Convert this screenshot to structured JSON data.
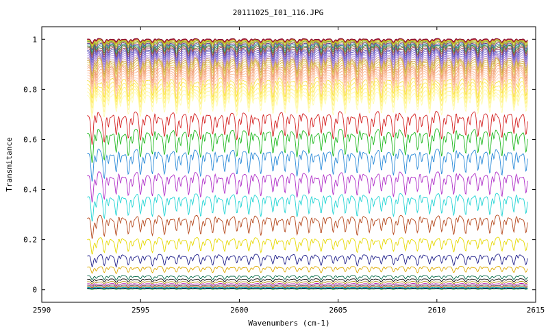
{
  "chart_data": {
    "type": "line",
    "title": "20111025_I01_116.JPG",
    "xlabel": "Wavenumbers (cm-1)",
    "ylabel": "Transmitance",
    "xlim": [
      2590,
      2615
    ],
    "ylim": [
      -0.05,
      1.05
    ],
    "x_ticks": [
      2590,
      2595,
      2600,
      2605,
      2610,
      2615
    ],
    "x_tick_labels": [
      "2590",
      "2595",
      "2600",
      "2605",
      "2610",
      "2615"
    ],
    "y_ticks": [
      0,
      0.2,
      0.4,
      0.6,
      0.8,
      1
    ],
    "y_tick_labels": [
      "0",
      "0.2",
      "0.4",
      "0.6",
      "0.8",
      "1"
    ],
    "grid": false,
    "legend": "none",
    "x_range": [
      2592.3,
      2614.6
    ],
    "line_count": 50,
    "series": [
      {
        "color": "#008800",
        "baseline": 0.003,
        "depth": 0.001
      },
      {
        "color": "#000080",
        "baseline": 0.006,
        "depth": 0.002
      },
      {
        "color": "#00aaaa",
        "baseline": 0.009,
        "depth": 0.003
      },
      {
        "color": "#aa4400",
        "baseline": 0.013,
        "depth": 0.004
      },
      {
        "color": "#666666",
        "baseline": 0.018,
        "depth": 0.005
      },
      {
        "color": "#aa00aa",
        "baseline": 0.024,
        "depth": 0.006
      },
      {
        "color": "#aa8800",
        "baseline": 0.032,
        "depth": 0.008
      },
      {
        "color": "#000000",
        "baseline": 0.042,
        "depth": 0.01
      },
      {
        "color": "#006644",
        "baseline": 0.055,
        "depth": 0.013
      },
      {
        "color": "#ddaa00",
        "baseline": 0.09,
        "depth": 0.02
      },
      {
        "color": "#1f1f8a",
        "baseline": 0.135,
        "depth": 0.035
      },
      {
        "color": "#e6d800",
        "baseline": 0.2,
        "depth": 0.045
      },
      {
        "color": "#b5481c",
        "baseline": 0.285,
        "depth": 0.06
      },
      {
        "color": "#22d4d4",
        "baseline": 0.37,
        "depth": 0.07
      },
      {
        "color": "#b030c8",
        "baseline": 0.455,
        "depth": 0.075
      },
      {
        "color": "#2a8ad8",
        "baseline": 0.545,
        "depth": 0.08
      },
      {
        "color": "#1fb81f",
        "baseline": 0.625,
        "depth": 0.085
      },
      {
        "color": "#d42020",
        "baseline": 0.695,
        "depth": 0.085
      },
      {
        "color": "#fffbb0",
        "baseline": 0.775,
        "depth": 0.07
      },
      {
        "color": "#fff7a0",
        "baseline": 0.79,
        "depth": 0.068
      },
      {
        "color": "#fff080",
        "baseline": 0.805,
        "depth": 0.066
      },
      {
        "color": "#ffea60",
        "baseline": 0.82,
        "depth": 0.064
      },
      {
        "color": "#f7e040",
        "baseline": 0.835,
        "depth": 0.062
      },
      {
        "color": "#ffd8c0",
        "baseline": 0.845,
        "depth": 0.06
      },
      {
        "color": "#ffcbb0",
        "baseline": 0.855,
        "depth": 0.058
      },
      {
        "color": "#fbbf9c",
        "baseline": 0.865,
        "depth": 0.056
      },
      {
        "color": "#f7b28c",
        "baseline": 0.875,
        "depth": 0.054
      },
      {
        "color": "#f2a57c",
        "baseline": 0.885,
        "depth": 0.052
      },
      {
        "color": "#ee9a70",
        "baseline": 0.893,
        "depth": 0.05
      },
      {
        "color": "#e9d070",
        "baseline": 0.9,
        "depth": 0.048
      },
      {
        "color": "#d8b848",
        "baseline": 0.908,
        "depth": 0.046
      },
      {
        "color": "#cba040",
        "baseline": 0.915,
        "depth": 0.044
      },
      {
        "color": "#c89880",
        "baseline": 0.922,
        "depth": 0.042
      },
      {
        "color": "#b58fd0",
        "baseline": 0.929,
        "depth": 0.04
      },
      {
        "color": "#a080d8",
        "baseline": 0.936,
        "depth": 0.038
      },
      {
        "color": "#8a70d0",
        "baseline": 0.943,
        "depth": 0.036
      },
      {
        "color": "#7060c8",
        "baseline": 0.95,
        "depth": 0.034
      },
      {
        "color": "#5a5ab8",
        "baseline": 0.956,
        "depth": 0.032
      },
      {
        "color": "#9a3a6a",
        "baseline": 0.962,
        "depth": 0.03
      },
      {
        "color": "#8a5a30",
        "baseline": 0.968,
        "depth": 0.028
      },
      {
        "color": "#3a7a3a",
        "baseline": 0.973,
        "depth": 0.026
      },
      {
        "color": "#2a8a8a",
        "baseline": 0.978,
        "depth": 0.024
      },
      {
        "color": "#5a3a9a",
        "baseline": 0.983,
        "depth": 0.022
      },
      {
        "color": "#c88a2a",
        "baseline": 0.987,
        "depth": 0.02
      },
      {
        "color": "#6aaa3a",
        "baseline": 0.991,
        "depth": 0.018
      },
      {
        "color": "#d8c028",
        "baseline": 0.994,
        "depth": 0.016
      },
      {
        "color": "#b0b000",
        "baseline": 0.997,
        "depth": 0.014
      },
      {
        "color": "#cc2244",
        "baseline": 0.999,
        "depth": 0.012
      },
      {
        "color": "#a01a3a",
        "baseline": 1.0,
        "depth": 0.012
      },
      {
        "color": "#8a1030",
        "baseline": 1.001,
        "depth": 0.011
      }
    ]
  }
}
